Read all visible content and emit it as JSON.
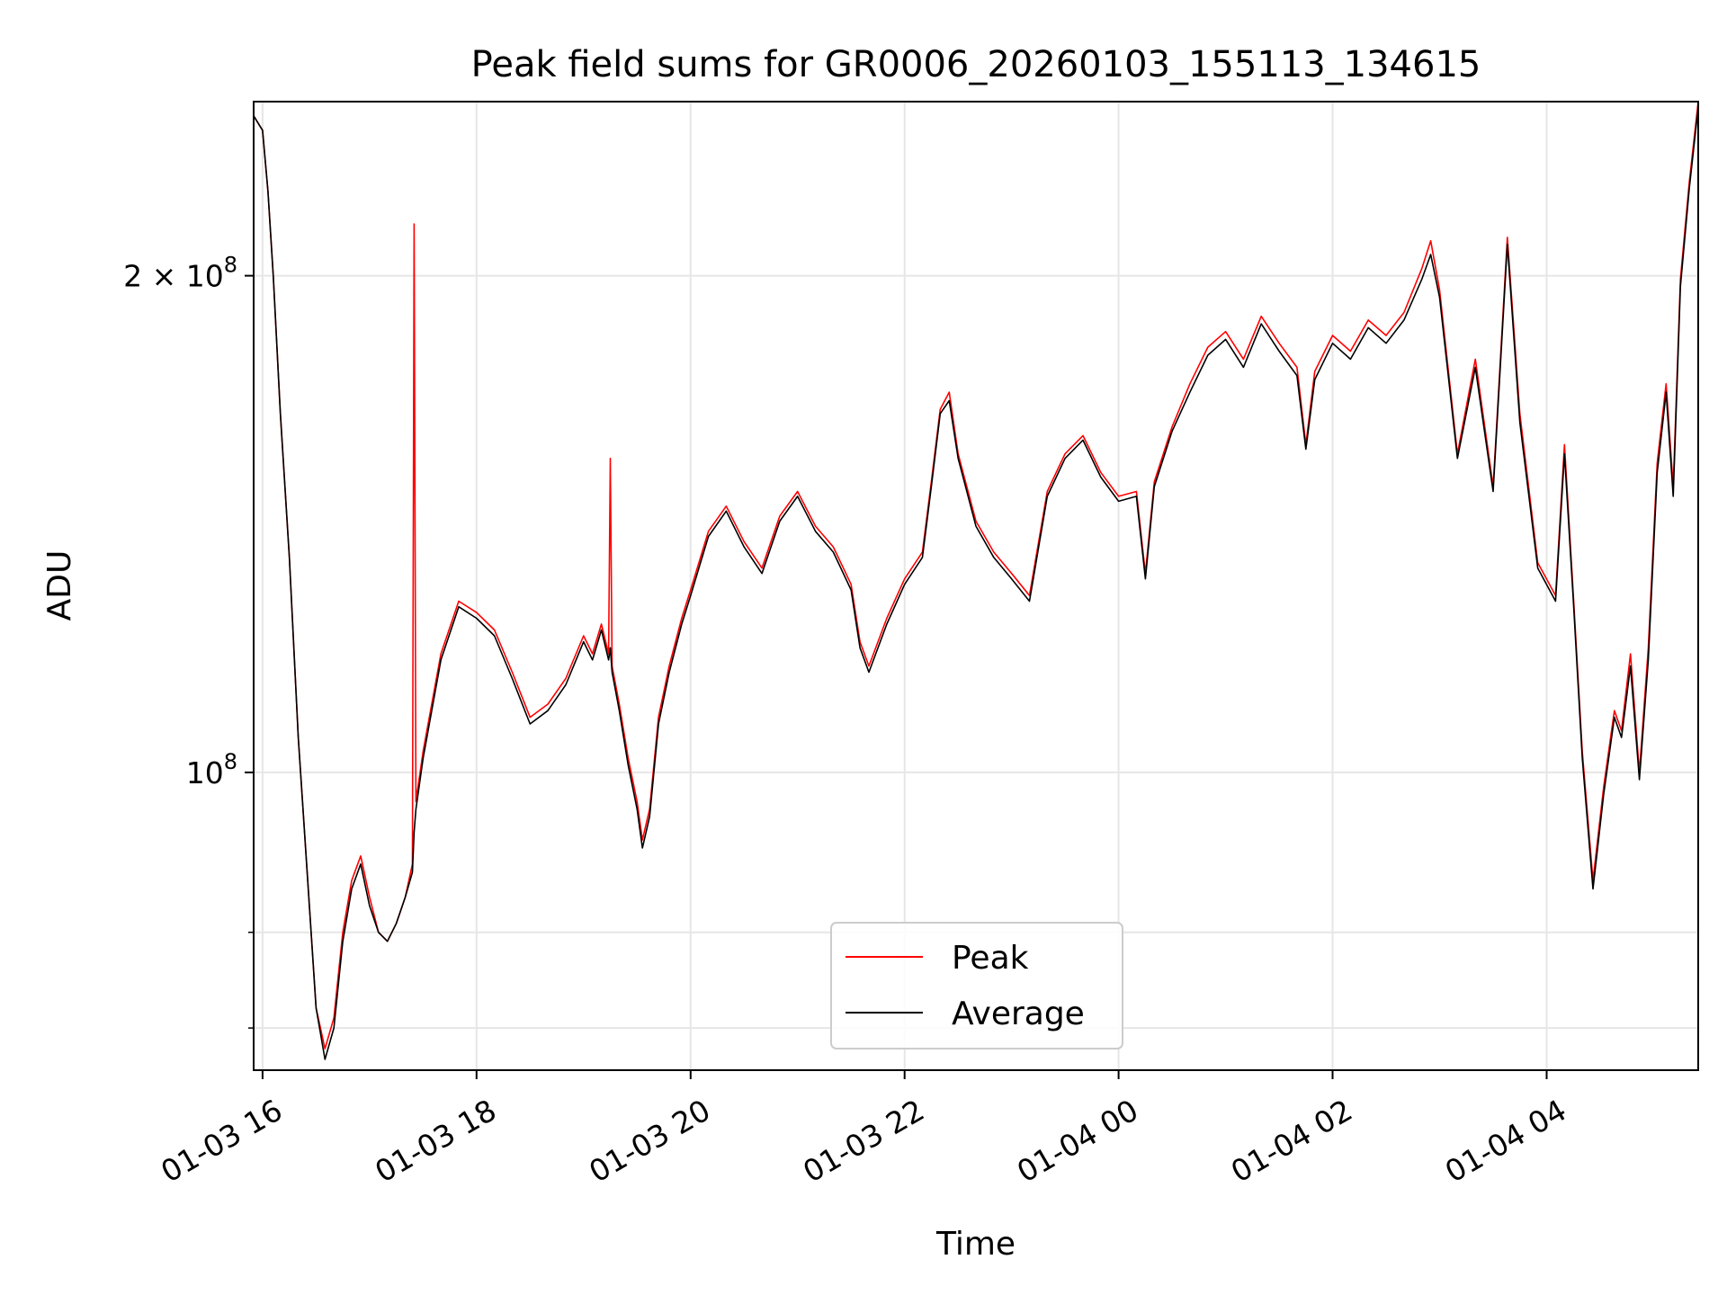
{
  "chart_data": {
    "type": "line",
    "title": "Peak field sums for GR0006_20260103_155113_134615",
    "xlabel": "Time",
    "ylabel": "ADU",
    "yscale": "log",
    "xlim": [
      "2026-01-03 15:55",
      "2026-01-04 05:25"
    ],
    "ylim": [
      66000000,
      255000000
    ],
    "grid": true,
    "legend_position": "lower-center",
    "x_ticks": [
      {
        "x": "2026-01-03 16:00",
        "label": "01-03 16"
      },
      {
        "x": "2026-01-03 18:00",
        "label": "01-03 18"
      },
      {
        "x": "2026-01-03 20:00",
        "label": "01-03 20"
      },
      {
        "x": "2026-01-03 22:00",
        "label": "01-03 22"
      },
      {
        "x": "2026-01-04 00:00",
        "label": "01-04 00"
      },
      {
        "x": "2026-01-04 02:00",
        "label": "01-04 02"
      },
      {
        "x": "2026-01-04 04:00",
        "label": "01-04 04"
      }
    ],
    "y_ticks": [
      {
        "value": 200000000,
        "base": "2 × 10",
        "exp": "8"
      },
      {
        "value": 100000000,
        "base": "10",
        "exp": "8"
      }
    ],
    "y_minor_ticks": [
      70000000,
      80000000
    ],
    "series": [
      {
        "name": "Peak",
        "color": "#ff0000",
        "points": [
          [
            "2026-01-03 15:55",
            250000000
          ],
          [
            "2026-01-03 16:00",
            245000000
          ],
          [
            "2026-01-03 16:03",
            225000000
          ],
          [
            "2026-01-03 16:06",
            200000000
          ],
          [
            "2026-01-03 16:10",
            165000000
          ],
          [
            "2026-01-03 16:15",
            135000000
          ],
          [
            "2026-01-03 16:20",
            105000000
          ],
          [
            "2026-01-03 16:25",
            87000000
          ],
          [
            "2026-01-03 16:30",
            72000000
          ],
          [
            "2026-01-03 16:35",
            68000000
          ],
          [
            "2026-01-03 16:40",
            71000000
          ],
          [
            "2026-01-03 16:45",
            80000000
          ],
          [
            "2026-01-03 16:50",
            86000000
          ],
          [
            "2026-01-03 16:55",
            89000000
          ],
          [
            "2026-01-03 17:00",
            84000000
          ],
          [
            "2026-01-03 17:05",
            80000000
          ],
          [
            "2026-01-03 17:10",
            79000000
          ],
          [
            "2026-01-03 17:15",
            81000000
          ],
          [
            "2026-01-03 17:20",
            84000000
          ],
          [
            "2026-01-03 17:24",
            88000000
          ],
          [
            "2026-01-03 17:25",
            215000000
          ],
          [
            "2026-01-03 17:26",
            96000000
          ],
          [
            "2026-01-03 17:30",
            103000000
          ],
          [
            "2026-01-03 17:40",
            118000000
          ],
          [
            "2026-01-03 17:50",
            127000000
          ],
          [
            "2026-01-03 18:00",
            125000000
          ],
          [
            "2026-01-03 18:10",
            122000000
          ],
          [
            "2026-01-03 18:20",
            115000000
          ],
          [
            "2026-01-03 18:30",
            108000000
          ],
          [
            "2026-01-03 18:40",
            110000000
          ],
          [
            "2026-01-03 18:50",
            114000000
          ],
          [
            "2026-01-03 19:00",
            121000000
          ],
          [
            "2026-01-03 19:05",
            118000000
          ],
          [
            "2026-01-03 19:10",
            123000000
          ],
          [
            "2026-01-03 19:14",
            118000000
          ],
          [
            "2026-01-03 19:15",
            155000000
          ],
          [
            "2026-01-03 19:16",
            116000000
          ],
          [
            "2026-01-03 19:20",
            110000000
          ],
          [
            "2026-01-03 19:25",
            102000000
          ],
          [
            "2026-01-03 19:30",
            96000000
          ],
          [
            "2026-01-03 19:33",
            91000000
          ],
          [
            "2026-01-03 19:37",
            95000000
          ],
          [
            "2026-01-03 19:42",
            108000000
          ],
          [
            "2026-01-03 19:48",
            116000000
          ],
          [
            "2026-01-03 19:55",
            124000000
          ],
          [
            "2026-01-03 20:00",
            129000000
          ],
          [
            "2026-01-03 20:10",
            140000000
          ],
          [
            "2026-01-03 20:20",
            145000000
          ],
          [
            "2026-01-03 20:30",
            138000000
          ],
          [
            "2026-01-03 20:40",
            133000000
          ],
          [
            "2026-01-03 20:50",
            143000000
          ],
          [
            "2026-01-03 21:00",
            148000000
          ],
          [
            "2026-01-03 21:10",
            141000000
          ],
          [
            "2026-01-03 21:20",
            137000000
          ],
          [
            "2026-01-03 21:30",
            130000000
          ],
          [
            "2026-01-03 21:35",
            120000000
          ],
          [
            "2026-01-03 21:40",
            116000000
          ],
          [
            "2026-01-03 21:50",
            124000000
          ],
          [
            "2026-01-03 22:00",
            131000000
          ],
          [
            "2026-01-03 22:10",
            136000000
          ],
          [
            "2026-01-03 22:15",
            150000000
          ],
          [
            "2026-01-03 22:20",
            166000000
          ],
          [
            "2026-01-03 22:25",
            170000000
          ],
          [
            "2026-01-03 22:30",
            156000000
          ],
          [
            "2026-01-03 22:40",
            142000000
          ],
          [
            "2026-01-03 22:50",
            136000000
          ],
          [
            "2026-01-03 23:00",
            132000000
          ],
          [
            "2026-01-03 23:10",
            128000000
          ],
          [
            "2026-01-03 23:20",
            148000000
          ],
          [
            "2026-01-03 23:30",
            156000000
          ],
          [
            "2026-01-03 23:40",
            160000000
          ],
          [
            "2026-01-03 23:50",
            152000000
          ],
          [
            "2026-01-04 00:00",
            147000000
          ],
          [
            "2026-01-04 00:10",
            148000000
          ],
          [
            "2026-01-04 00:15",
            132000000
          ],
          [
            "2026-01-04 00:20",
            150000000
          ],
          [
            "2026-01-04 00:30",
            162000000
          ],
          [
            "2026-01-04 00:40",
            172000000
          ],
          [
            "2026-01-04 00:50",
            181000000
          ],
          [
            "2026-01-04 01:00",
            185000000
          ],
          [
            "2026-01-04 01:10",
            178000000
          ],
          [
            "2026-01-04 01:20",
            189000000
          ],
          [
            "2026-01-04 01:30",
            182000000
          ],
          [
            "2026-01-04 01:40",
            176000000
          ],
          [
            "2026-01-04 01:45",
            158000000
          ],
          [
            "2026-01-04 01:50",
            175000000
          ],
          [
            "2026-01-04 02:00",
            184000000
          ],
          [
            "2026-01-04 02:10",
            180000000
          ],
          [
            "2026-01-04 02:20",
            188000000
          ],
          [
            "2026-01-04 02:30",
            184000000
          ],
          [
            "2026-01-04 02:40",
            190000000
          ],
          [
            "2026-01-04 02:50",
            202000000
          ],
          [
            "2026-01-04 02:55",
            210000000
          ],
          [
            "2026-01-04 03:00",
            196000000
          ],
          [
            "2026-01-04 03:10",
            156000000
          ],
          [
            "2026-01-04 03:20",
            178000000
          ],
          [
            "2026-01-04 03:30",
            149000000
          ],
          [
            "2026-01-04 03:38",
            211000000
          ],
          [
            "2026-01-04 03:45",
            165000000
          ],
          [
            "2026-01-04 03:55",
            134000000
          ],
          [
            "2026-01-04 04:05",
            128000000
          ],
          [
            "2026-01-04 04:10",
            158000000
          ],
          [
            "2026-01-04 04:15",
            128000000
          ],
          [
            "2026-01-04 04:20",
            103000000
          ],
          [
            "2026-01-04 04:26",
            86000000
          ],
          [
            "2026-01-04 04:32",
            98000000
          ],
          [
            "2026-01-04 04:38",
            109000000
          ],
          [
            "2026-01-04 04:42",
            106000000
          ],
          [
            "2026-01-04 04:47",
            118000000
          ],
          [
            "2026-01-04 04:52",
            100000000
          ],
          [
            "2026-01-04 04:57",
            119000000
          ],
          [
            "2026-01-04 05:02",
            154000000
          ],
          [
            "2026-01-04 05:07",
            172000000
          ],
          [
            "2026-01-04 05:11",
            149000000
          ],
          [
            "2026-01-04 05:15",
            199000000
          ],
          [
            "2026-01-04 05:20",
            228000000
          ],
          [
            "2026-01-04 05:25",
            255000000
          ]
        ]
      },
      {
        "name": "Average",
        "color": "#000000",
        "points": [
          [
            "2026-01-03 15:55",
            250000000
          ],
          [
            "2026-01-03 16:00",
            245000000
          ],
          [
            "2026-01-03 16:03",
            225000000
          ],
          [
            "2026-01-03 16:06",
            200000000
          ],
          [
            "2026-01-03 16:10",
            165000000
          ],
          [
            "2026-01-03 16:15",
            135000000
          ],
          [
            "2026-01-03 16:20",
            105000000
          ],
          [
            "2026-01-03 16:25",
            87000000
          ],
          [
            "2026-01-03 16:30",
            72000000
          ],
          [
            "2026-01-03 16:35",
            67000000
          ],
          [
            "2026-01-03 16:40",
            70000000
          ],
          [
            "2026-01-03 16:45",
            79000000
          ],
          [
            "2026-01-03 16:50",
            85000000
          ],
          [
            "2026-01-03 16:55",
            88000000
          ],
          [
            "2026-01-03 17:00",
            83000000
          ],
          [
            "2026-01-03 17:05",
            80000000
          ],
          [
            "2026-01-03 17:10",
            79000000
          ],
          [
            "2026-01-03 17:15",
            81000000
          ],
          [
            "2026-01-03 17:20",
            84000000
          ],
          [
            "2026-01-03 17:24",
            87000000
          ],
          [
            "2026-01-03 17:25",
            92000000
          ],
          [
            "2026-01-03 17:26",
            95000000
          ],
          [
            "2026-01-03 17:30",
            102000000
          ],
          [
            "2026-01-03 17:40",
            117000000
          ],
          [
            "2026-01-03 17:50",
            126000000
          ],
          [
            "2026-01-03 18:00",
            124000000
          ],
          [
            "2026-01-03 18:10",
            121000000
          ],
          [
            "2026-01-03 18:20",
            114000000
          ],
          [
            "2026-01-03 18:30",
            107000000
          ],
          [
            "2026-01-03 18:40",
            109000000
          ],
          [
            "2026-01-03 18:50",
            113000000
          ],
          [
            "2026-01-03 19:00",
            120000000
          ],
          [
            "2026-01-03 19:05",
            117000000
          ],
          [
            "2026-01-03 19:10",
            122000000
          ],
          [
            "2026-01-03 19:14",
            117000000
          ],
          [
            "2026-01-03 19:15",
            119000000
          ],
          [
            "2026-01-03 19:16",
            115000000
          ],
          [
            "2026-01-03 19:20",
            109000000
          ],
          [
            "2026-01-03 19:25",
            101000000
          ],
          [
            "2026-01-03 19:30",
            95000000
          ],
          [
            "2026-01-03 19:33",
            90000000
          ],
          [
            "2026-01-03 19:37",
            94000000
          ],
          [
            "2026-01-03 19:42",
            107000000
          ],
          [
            "2026-01-03 19:48",
            115000000
          ],
          [
            "2026-01-03 19:55",
            123000000
          ],
          [
            "2026-01-03 20:00",
            128000000
          ],
          [
            "2026-01-03 20:10",
            139000000
          ],
          [
            "2026-01-03 20:20",
            144000000
          ],
          [
            "2026-01-03 20:30",
            137000000
          ],
          [
            "2026-01-03 20:40",
            132000000
          ],
          [
            "2026-01-03 20:50",
            142000000
          ],
          [
            "2026-01-03 21:00",
            147000000
          ],
          [
            "2026-01-03 21:10",
            140000000
          ],
          [
            "2026-01-03 21:20",
            136000000
          ],
          [
            "2026-01-03 21:30",
            129000000
          ],
          [
            "2026-01-03 21:35",
            119000000
          ],
          [
            "2026-01-03 21:40",
            115000000
          ],
          [
            "2026-01-03 21:50",
            123000000
          ],
          [
            "2026-01-03 22:00",
            130000000
          ],
          [
            "2026-01-03 22:10",
            135000000
          ],
          [
            "2026-01-03 22:15",
            149000000
          ],
          [
            "2026-01-03 22:20",
            165000000
          ],
          [
            "2026-01-03 22:25",
            168000000
          ],
          [
            "2026-01-03 22:30",
            155000000
          ],
          [
            "2026-01-03 22:40",
            141000000
          ],
          [
            "2026-01-03 22:50",
            135000000
          ],
          [
            "2026-01-03 23:00",
            131000000
          ],
          [
            "2026-01-03 23:10",
            127000000
          ],
          [
            "2026-01-03 23:20",
            147000000
          ],
          [
            "2026-01-03 23:30",
            155000000
          ],
          [
            "2026-01-03 23:40",
            159000000
          ],
          [
            "2026-01-03 23:50",
            151000000
          ],
          [
            "2026-01-04 00:00",
            146000000
          ],
          [
            "2026-01-04 00:10",
            147000000
          ],
          [
            "2026-01-04 00:15",
            131000000
          ],
          [
            "2026-01-04 00:20",
            149000000
          ],
          [
            "2026-01-04 00:30",
            161000000
          ],
          [
            "2026-01-04 00:40",
            170000000
          ],
          [
            "2026-01-04 00:50",
            179000000
          ],
          [
            "2026-01-04 01:00",
            183000000
          ],
          [
            "2026-01-04 01:10",
            176000000
          ],
          [
            "2026-01-04 01:20",
            187000000
          ],
          [
            "2026-01-04 01:30",
            180000000
          ],
          [
            "2026-01-04 01:40",
            174000000
          ],
          [
            "2026-01-04 01:45",
            157000000
          ],
          [
            "2026-01-04 01:50",
            173000000
          ],
          [
            "2026-01-04 02:00",
            182000000
          ],
          [
            "2026-01-04 02:10",
            178000000
          ],
          [
            "2026-01-04 02:20",
            186000000
          ],
          [
            "2026-01-04 02:30",
            182000000
          ],
          [
            "2026-01-04 02:40",
            188000000
          ],
          [
            "2026-01-04 02:50",
            199000000
          ],
          [
            "2026-01-04 02:55",
            206000000
          ],
          [
            "2026-01-04 03:00",
            194000000
          ],
          [
            "2026-01-04 03:10",
            155000000
          ],
          [
            "2026-01-04 03:20",
            176000000
          ],
          [
            "2026-01-04 03:30",
            148000000
          ],
          [
            "2026-01-04 03:38",
            209000000
          ],
          [
            "2026-01-04 03:45",
            163000000
          ],
          [
            "2026-01-04 03:55",
            133000000
          ],
          [
            "2026-01-04 04:05",
            127000000
          ],
          [
            "2026-01-04 04:10",
            156000000
          ],
          [
            "2026-01-04 04:15",
            127000000
          ],
          [
            "2026-01-04 04:20",
            102000000
          ],
          [
            "2026-01-04 04:26",
            85000000
          ],
          [
            "2026-01-04 04:32",
            97000000
          ],
          [
            "2026-01-04 04:38",
            108000000
          ],
          [
            "2026-01-04 04:42",
            105000000
          ],
          [
            "2026-01-04 04:47",
            116000000
          ],
          [
            "2026-01-04 04:52",
            99000000
          ],
          [
            "2026-01-04 04:57",
            117000000
          ],
          [
            "2026-01-04 05:02",
            152000000
          ],
          [
            "2026-01-04 05:07",
            170000000
          ],
          [
            "2026-01-04 05:11",
            147000000
          ],
          [
            "2026-01-04 05:15",
            197000000
          ],
          [
            "2026-01-04 05:20",
            226000000
          ],
          [
            "2026-01-04 05:25",
            253000000
          ]
        ]
      }
    ]
  }
}
